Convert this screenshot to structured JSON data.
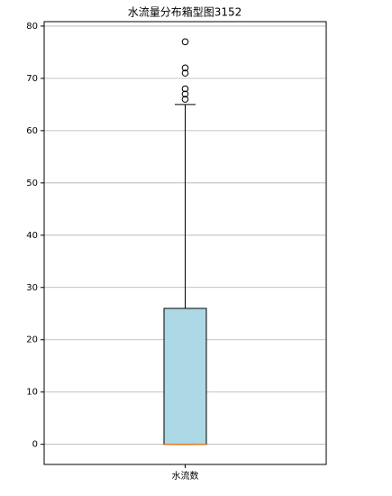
{
  "chart_data": {
    "type": "box",
    "title": "水流量分布箱型图3152",
    "categories": [
      "水流数"
    ],
    "boxes": [
      {
        "min": 0,
        "q1": 0,
        "median": 0,
        "q3": 26,
        "max": 65,
        "outliers": [
          66,
          67,
          68,
          71,
          72,
          77
        ]
      }
    ],
    "box_color": "#add8e6",
    "median_color": "#ff7f0e",
    "ylim": [
      -3.85,
      80.85
    ],
    "yticks": [
      0,
      10,
      20,
      30,
      40,
      50,
      60,
      70,
      80
    ],
    "grid": true
  }
}
